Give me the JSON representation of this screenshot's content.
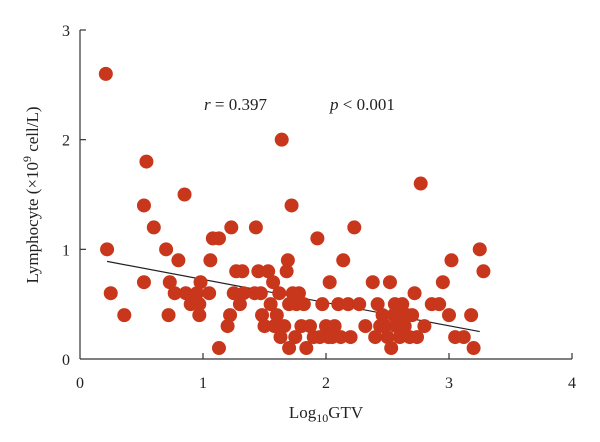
{
  "chart_data": {
    "type": "scatter",
    "xlabel_main": "Log",
    "xlabel_sub": "10",
    "xlabel_tail": "GTV",
    "ylabel_main": "Lymphocyte (×10",
    "ylabel_sup": "9",
    "ylabel_tail": " cell/L)",
    "xlim": [
      0,
      4
    ],
    "ylim": [
      0,
      3
    ],
    "xticks": [
      "0",
      "1",
      "2",
      "3",
      "4"
    ],
    "yticks": [
      "0",
      "1",
      "2",
      "3"
    ],
    "grid": false,
    "legend": "none",
    "annotations": {
      "r_symbol": "r",
      "r_value": " = 0.397",
      "p_symbol": "p",
      "p_value": " < 0.001"
    },
    "marker_color": "#c8361b",
    "trend_color": "#222222",
    "trendline": {
      "x": [
        0.22,
        3.25
      ],
      "y": [
        0.89,
        0.25
      ]
    },
    "points": [
      {
        "x": 0.21,
        "y": 2.6
      },
      {
        "x": 0.22,
        "y": 1.0
      },
      {
        "x": 0.25,
        "y": 0.6
      },
      {
        "x": 0.36,
        "y": 0.4
      },
      {
        "x": 0.52,
        "y": 1.4
      },
      {
        "x": 0.54,
        "y": 1.8
      },
      {
        "x": 0.52,
        "y": 0.7
      },
      {
        "x": 0.6,
        "y": 1.2
      },
      {
        "x": 0.7,
        "y": 1.0
      },
      {
        "x": 0.73,
        "y": 0.7
      },
      {
        "x": 0.72,
        "y": 0.4
      },
      {
        "x": 0.77,
        "y": 0.6
      },
      {
        "x": 0.8,
        "y": 0.9
      },
      {
        "x": 0.85,
        "y": 1.5
      },
      {
        "x": 0.86,
        "y": 0.6
      },
      {
        "x": 0.9,
        "y": 0.5
      },
      {
        "x": 0.95,
        "y": 0.6
      },
      {
        "x": 0.97,
        "y": 0.5
      },
      {
        "x": 0.97,
        "y": 0.4
      },
      {
        "x": 0.98,
        "y": 0.7
      },
      {
        "x": 1.05,
        "y": 0.6
      },
      {
        "x": 1.06,
        "y": 0.9
      },
      {
        "x": 1.08,
        "y": 1.1
      },
      {
        "x": 1.13,
        "y": 1.1
      },
      {
        "x": 1.13,
        "y": 0.1
      },
      {
        "x": 1.2,
        "y": 0.3
      },
      {
        "x": 1.22,
        "y": 0.4
      },
      {
        "x": 1.23,
        "y": 1.2
      },
      {
        "x": 1.25,
        "y": 0.6
      },
      {
        "x": 1.27,
        "y": 0.8
      },
      {
        "x": 1.3,
        "y": 0.5
      },
      {
        "x": 1.32,
        "y": 0.8
      },
      {
        "x": 1.33,
        "y": 0.6
      },
      {
        "x": 1.42,
        "y": 0.6
      },
      {
        "x": 1.43,
        "y": 1.2
      },
      {
        "x": 1.45,
        "y": 0.8
      },
      {
        "x": 1.47,
        "y": 0.6
      },
      {
        "x": 1.48,
        "y": 0.4
      },
      {
        "x": 1.5,
        "y": 0.3
      },
      {
        "x": 1.53,
        "y": 0.8
      },
      {
        "x": 1.55,
        "y": 0.5
      },
      {
        "x": 1.57,
        "y": 0.7
      },
      {
        "x": 1.58,
        "y": 0.3
      },
      {
        "x": 1.6,
        "y": 0.4
      },
      {
        "x": 1.62,
        "y": 0.6
      },
      {
        "x": 1.63,
        "y": 0.2
      },
      {
        "x": 1.64,
        "y": 2.0
      },
      {
        "x": 1.66,
        "y": 0.3
      },
      {
        "x": 1.68,
        "y": 0.8
      },
      {
        "x": 1.69,
        "y": 0.9
      },
      {
        "x": 1.7,
        "y": 0.1
      },
      {
        "x": 1.7,
        "y": 0.5
      },
      {
        "x": 1.72,
        "y": 1.4
      },
      {
        "x": 1.73,
        "y": 0.6
      },
      {
        "x": 1.75,
        "y": 0.2
      },
      {
        "x": 1.76,
        "y": 0.5
      },
      {
        "x": 1.78,
        "y": 0.6
      },
      {
        "x": 1.8,
        "y": 0.3
      },
      {
        "x": 1.82,
        "y": 0.5
      },
      {
        "x": 1.84,
        "y": 0.1
      },
      {
        "x": 1.87,
        "y": 0.3
      },
      {
        "x": 1.9,
        "y": 0.2
      },
      {
        "x": 1.93,
        "y": 1.1
      },
      {
        "x": 1.95,
        "y": 0.2
      },
      {
        "x": 1.97,
        "y": 0.5
      },
      {
        "x": 2.0,
        "y": 0.3
      },
      {
        "x": 2.02,
        "y": 0.2
      },
      {
        "x": 2.03,
        "y": 0.7
      },
      {
        "x": 2.05,
        "y": 0.2
      },
      {
        "x": 2.07,
        "y": 0.3
      },
      {
        "x": 2.1,
        "y": 0.5
      },
      {
        "x": 2.12,
        "y": 0.2
      },
      {
        "x": 2.14,
        "y": 0.9
      },
      {
        "x": 2.18,
        "y": 0.5
      },
      {
        "x": 2.2,
        "y": 0.2
      },
      {
        "x": 2.23,
        "y": 1.2
      },
      {
        "x": 2.27,
        "y": 0.5
      },
      {
        "x": 2.32,
        "y": 0.3
      },
      {
        "x": 2.38,
        "y": 0.7
      },
      {
        "x": 2.4,
        "y": 0.2
      },
      {
        "x": 2.42,
        "y": 0.5
      },
      {
        "x": 2.44,
        "y": 0.3
      },
      {
        "x": 2.46,
        "y": 0.4
      },
      {
        "x": 2.48,
        "y": 0.3
      },
      {
        "x": 2.5,
        "y": 0.2
      },
      {
        "x": 2.52,
        "y": 0.7
      },
      {
        "x": 2.53,
        "y": 0.1
      },
      {
        "x": 2.55,
        "y": 0.4
      },
      {
        "x": 2.56,
        "y": 0.5
      },
      {
        "x": 2.57,
        "y": 0.3
      },
      {
        "x": 2.58,
        "y": 0.4
      },
      {
        "x": 2.6,
        "y": 0.2
      },
      {
        "x": 2.62,
        "y": 0.5
      },
      {
        "x": 2.64,
        "y": 0.3
      },
      {
        "x": 2.66,
        "y": 0.4
      },
      {
        "x": 2.68,
        "y": 0.2
      },
      {
        "x": 2.7,
        "y": 0.4
      },
      {
        "x": 2.72,
        "y": 0.6
      },
      {
        "x": 2.74,
        "y": 0.2
      },
      {
        "x": 2.77,
        "y": 1.6
      },
      {
        "x": 2.8,
        "y": 0.3
      },
      {
        "x": 2.86,
        "y": 0.5
      },
      {
        "x": 2.92,
        "y": 0.5
      },
      {
        "x": 2.95,
        "y": 0.7
      },
      {
        "x": 3.0,
        "y": 0.4
      },
      {
        "x": 3.02,
        "y": 0.9
      },
      {
        "x": 3.05,
        "y": 0.2
      },
      {
        "x": 3.12,
        "y": 0.2
      },
      {
        "x": 3.18,
        "y": 0.4
      },
      {
        "x": 3.2,
        "y": 0.1
      },
      {
        "x": 3.25,
        "y": 1.0
      },
      {
        "x": 3.28,
        "y": 0.8
      }
    ]
  }
}
